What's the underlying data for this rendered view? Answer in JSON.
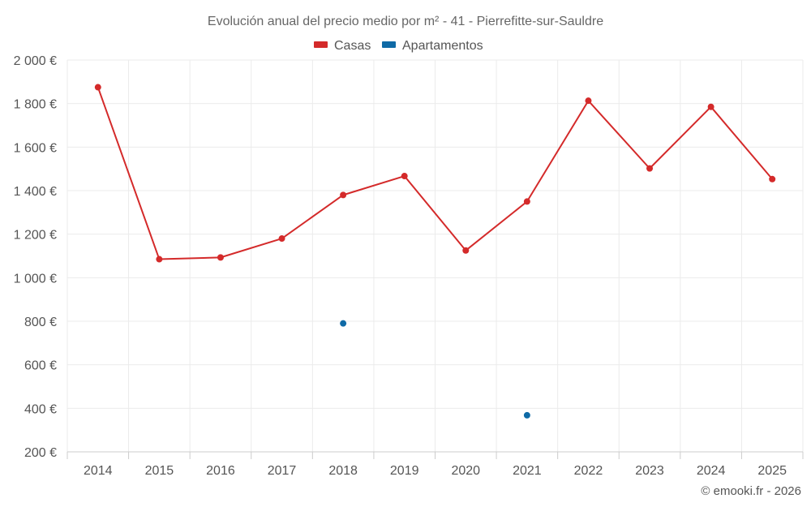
{
  "chart_data": {
    "type": "line",
    "title": "Evolución anual del precio medio por m² - 41 - Pierrefitte-sur-Sauldre",
    "categories": [
      "2014",
      "2015",
      "2016",
      "2017",
      "2018",
      "2019",
      "2020",
      "2021",
      "2022",
      "2023",
      "2024",
      "2025"
    ],
    "y_tick_labels": [
      "200 €",
      "400 €",
      "600 €",
      "800 €",
      "1 000 €",
      "1 200 €",
      "1 400 €",
      "1 600 €",
      "1 800 €",
      "2 000 €"
    ],
    "y_ticks": [
      200,
      400,
      600,
      800,
      1000,
      1200,
      1400,
      1600,
      1800,
      2000
    ],
    "ylim": [
      200,
      2000
    ],
    "grid": true,
    "legend_position": "top-center",
    "series": [
      {
        "name": "Casas",
        "color": "#d42a2a",
        "values": [
          1875,
          1085,
          1093,
          1180,
          1380,
          1467,
          1125,
          1350,
          1813,
          1502,
          1785,
          1453
        ]
      },
      {
        "name": "Apartamentos",
        "color": "#0f6aa6",
        "values": [
          null,
          null,
          null,
          null,
          790,
          null,
          null,
          368,
          null,
          null,
          null,
          null
        ]
      }
    ],
    "credit": "© emooki.fr - 2026"
  }
}
